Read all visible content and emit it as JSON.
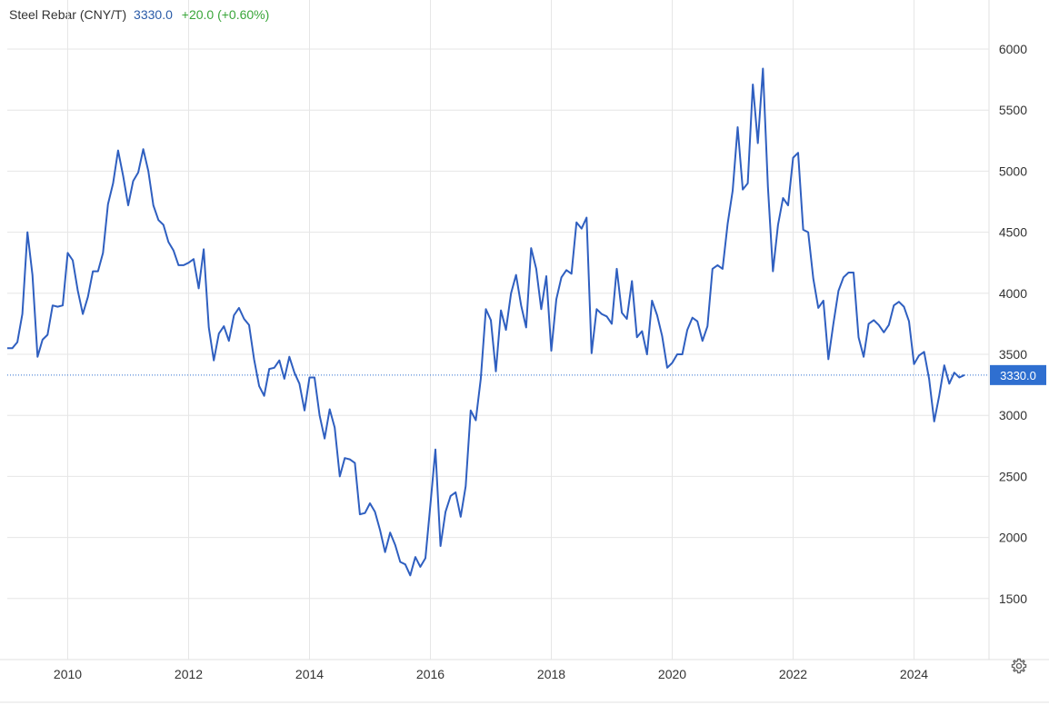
{
  "header": {
    "name": "Steel Rebar (CNY/T)",
    "last": "3330.0",
    "change": "+20.0 (+0.60%)"
  },
  "colors": {
    "line": "#2f5fc0",
    "badge": "#2f6fd0",
    "change": "#3aa63a",
    "grid": "#e6e6e6"
  },
  "settings_icon": "gear-icon",
  "chart_data": {
    "type": "line",
    "title": "Steel Rebar (CNY/T)",
    "xlabel": "",
    "ylabel": "",
    "x_range": [
      "2009-01",
      "2025-04"
    ],
    "ylim": [
      1000,
      6300
    ],
    "x_ticks": [
      "2010",
      "2012",
      "2014",
      "2016",
      "2018",
      "2020",
      "2022",
      "2024"
    ],
    "y_ticks": [
      1500,
      2000,
      2500,
      3000,
      3500,
      4000,
      4500,
      5000,
      5500,
      6000
    ],
    "grid": true,
    "last_value_label": "3330.0",
    "last_value": 3330,
    "series": [
      {
        "values": [
          [
            "2009-01",
            3550
          ],
          [
            "2009-02",
            3550
          ],
          [
            "2009-03",
            3600
          ],
          [
            "2009-04",
            3830
          ],
          [
            "2009-05",
            4500
          ],
          [
            "2009-06",
            4150
          ],
          [
            "2009-07",
            3480
          ],
          [
            "2009-08",
            3620
          ],
          [
            "2009-09",
            3660
          ],
          [
            "2009-10",
            3900
          ],
          [
            "2009-11",
            3890
          ],
          [
            "2009-12",
            3900
          ],
          [
            "2010-01",
            4330
          ],
          [
            "2010-02",
            4270
          ],
          [
            "2010-03",
            4020
          ],
          [
            "2010-04",
            3830
          ],
          [
            "2010-05",
            3970
          ],
          [
            "2010-06",
            4180
          ],
          [
            "2010-07",
            4180
          ],
          [
            "2010-08",
            4330
          ],
          [
            "2010-09",
            4730
          ],
          [
            "2010-10",
            4900
          ],
          [
            "2010-11",
            5170
          ],
          [
            "2010-12",
            4960
          ],
          [
            "2011-01",
            4720
          ],
          [
            "2011-02",
            4920
          ],
          [
            "2011-03",
            4990
          ],
          [
            "2011-04",
            5180
          ],
          [
            "2011-05",
            5000
          ],
          [
            "2011-06",
            4720
          ],
          [
            "2011-07",
            4600
          ],
          [
            "2011-08",
            4560
          ],
          [
            "2011-09",
            4420
          ],
          [
            "2011-10",
            4350
          ],
          [
            "2011-11",
            4230
          ],
          [
            "2011-12",
            4230
          ],
          [
            "2012-01",
            4250
          ],
          [
            "2012-02",
            4280
          ],
          [
            "2012-03",
            4040
          ],
          [
            "2012-04",
            4360
          ],
          [
            "2012-05",
            3720
          ],
          [
            "2012-06",
            3450
          ],
          [
            "2012-07",
            3670
          ],
          [
            "2012-08",
            3730
          ],
          [
            "2012-09",
            3610
          ],
          [
            "2012-10",
            3820
          ],
          [
            "2012-11",
            3880
          ],
          [
            "2012-12",
            3790
          ],
          [
            "2013-01",
            3740
          ],
          [
            "2013-02",
            3460
          ],
          [
            "2013-03",
            3240
          ],
          [
            "2013-04",
            3160
          ],
          [
            "2013-05",
            3380
          ],
          [
            "2013-06",
            3390
          ],
          [
            "2013-07",
            3450
          ],
          [
            "2013-08",
            3300
          ],
          [
            "2013-09",
            3480
          ],
          [
            "2013-10",
            3350
          ],
          [
            "2013-11",
            3260
          ],
          [
            "2013-12",
            3040
          ],
          [
            "2014-01",
            3310
          ],
          [
            "2014-02",
            3310
          ],
          [
            "2014-03",
            3000
          ],
          [
            "2014-04",
            2810
          ],
          [
            "2014-05",
            3050
          ],
          [
            "2014-06",
            2900
          ],
          [
            "2014-07",
            2500
          ],
          [
            "2014-08",
            2650
          ],
          [
            "2014-09",
            2640
          ],
          [
            "2014-10",
            2610
          ],
          [
            "2014-11",
            2190
          ],
          [
            "2014-12",
            2200
          ],
          [
            "2015-01",
            2280
          ],
          [
            "2015-02",
            2210
          ],
          [
            "2015-03",
            2060
          ],
          [
            "2015-04",
            1880
          ],
          [
            "2015-05",
            2040
          ],
          [
            "2015-06",
            1940
          ],
          [
            "2015-07",
            1800
          ],
          [
            "2015-08",
            1780
          ],
          [
            "2015-09",
            1690
          ],
          [
            "2015-10",
            1840
          ],
          [
            "2015-11",
            1760
          ],
          [
            "2015-12",
            1830
          ],
          [
            "2016-01",
            2270
          ],
          [
            "2016-02",
            2720
          ],
          [
            "2016-03",
            1930
          ],
          [
            "2016-04",
            2210
          ],
          [
            "2016-05",
            2340
          ],
          [
            "2016-06",
            2370
          ],
          [
            "2016-07",
            2170
          ],
          [
            "2016-08",
            2420
          ],
          [
            "2016-09",
            3040
          ],
          [
            "2016-10",
            2960
          ],
          [
            "2016-11",
            3300
          ],
          [
            "2016-12",
            3870
          ],
          [
            "2017-01",
            3780
          ],
          [
            "2017-02",
            3360
          ],
          [
            "2017-03",
            3860
          ],
          [
            "2017-04",
            3700
          ],
          [
            "2017-05",
            4000
          ],
          [
            "2017-06",
            4150
          ],
          [
            "2017-07",
            3900
          ],
          [
            "2017-08",
            3720
          ],
          [
            "2017-09",
            4370
          ],
          [
            "2017-10",
            4200
          ],
          [
            "2017-11",
            3870
          ],
          [
            "2017-12",
            4140
          ],
          [
            "2018-01",
            3530
          ],
          [
            "2018-02",
            3950
          ],
          [
            "2018-03",
            4130
          ],
          [
            "2018-04",
            4190
          ],
          [
            "2018-05",
            4160
          ],
          [
            "2018-06",
            4580
          ],
          [
            "2018-07",
            4530
          ],
          [
            "2018-08",
            4620
          ],
          [
            "2018-09",
            3510
          ],
          [
            "2018-10",
            3870
          ],
          [
            "2018-11",
            3830
          ],
          [
            "2018-12",
            3810
          ],
          [
            "2019-01",
            3750
          ],
          [
            "2019-02",
            4200
          ],
          [
            "2019-03",
            3840
          ],
          [
            "2019-04",
            3790
          ],
          [
            "2019-05",
            4100
          ],
          [
            "2019-06",
            3640
          ],
          [
            "2019-07",
            3690
          ],
          [
            "2019-08",
            3500
          ],
          [
            "2019-09",
            3940
          ],
          [
            "2019-10",
            3820
          ],
          [
            "2019-11",
            3650
          ],
          [
            "2019-12",
            3390
          ],
          [
            "2020-01",
            3430
          ],
          [
            "2020-02",
            3500
          ],
          [
            "2020-03",
            3500
          ],
          [
            "2020-04",
            3700
          ],
          [
            "2020-05",
            3800
          ],
          [
            "2020-06",
            3770
          ],
          [
            "2020-07",
            3610
          ],
          [
            "2020-08",
            3730
          ],
          [
            "2020-09",
            4200
          ],
          [
            "2020-10",
            4230
          ],
          [
            "2020-11",
            4200
          ],
          [
            "2020-12",
            4570
          ],
          [
            "2021-01",
            4840
          ],
          [
            "2021-02",
            5360
          ],
          [
            "2021-03",
            4850
          ],
          [
            "2021-04",
            4900
          ],
          [
            "2021-05",
            5710
          ],
          [
            "2021-06",
            5230
          ],
          [
            "2021-07",
            5840
          ],
          [
            "2021-08",
            4870
          ],
          [
            "2021-09",
            4180
          ],
          [
            "2021-10",
            4560
          ],
          [
            "2021-11",
            4780
          ],
          [
            "2021-12",
            4720
          ],
          [
            "2022-01",
            5110
          ],
          [
            "2022-02",
            5150
          ],
          [
            "2022-03",
            4520
          ],
          [
            "2022-04",
            4500
          ],
          [
            "2022-05",
            4120
          ],
          [
            "2022-06",
            3880
          ],
          [
            "2022-07",
            3940
          ],
          [
            "2022-08",
            3460
          ],
          [
            "2022-09",
            3750
          ],
          [
            "2022-10",
            4020
          ],
          [
            "2022-11",
            4130
          ],
          [
            "2022-12",
            4170
          ],
          [
            "2023-01",
            4170
          ],
          [
            "2023-02",
            3640
          ],
          [
            "2023-03",
            3480
          ],
          [
            "2023-04",
            3750
          ],
          [
            "2023-05",
            3780
          ],
          [
            "2023-06",
            3740
          ],
          [
            "2023-07",
            3680
          ],
          [
            "2023-08",
            3740
          ],
          [
            "2023-09",
            3900
          ],
          [
            "2023-10",
            3930
          ],
          [
            "2023-11",
            3890
          ],
          [
            "2023-12",
            3770
          ],
          [
            "2024-01",
            3420
          ],
          [
            "2024-02",
            3490
          ],
          [
            "2024-03",
            3520
          ],
          [
            "2024-04",
            3300
          ],
          [
            "2024-05",
            2950
          ],
          [
            "2024-06",
            3160
          ],
          [
            "2024-07",
            3410
          ],
          [
            "2024-08",
            3260
          ],
          [
            "2024-09",
            3350
          ],
          [
            "2024-10",
            3310
          ],
          [
            "2024-11",
            3330
          ]
        ]
      }
    ]
  }
}
